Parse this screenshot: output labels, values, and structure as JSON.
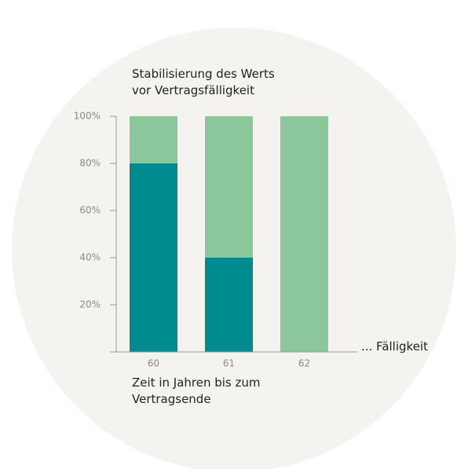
{
  "chart_data": {
    "type": "bar",
    "stacked": true,
    "title": "Stabilisierung des Werts vor Vertragsfälligkeit",
    "x_label": "Zeit in Jahren bis zum Vertragsende",
    "annotation": "... Fälligkeit",
    "categories": [
      "60",
      "61",
      "62"
    ],
    "series": [
      {
        "color": "#008c8e",
        "values": [
          80,
          40,
          0
        ]
      },
      {
        "color": "#8cc79b",
        "values": [
          20,
          60,
          100
        ]
      }
    ],
    "ylim": [
      0,
      100
    ],
    "yticks": [
      {
        "value": 20,
        "label": "20%"
      },
      {
        "value": 40,
        "label": "40%"
      },
      {
        "value": 60,
        "label": "60%"
      },
      {
        "value": 80,
        "label": "80%"
      },
      {
        "value": 100,
        "label": "100%"
      }
    ]
  }
}
